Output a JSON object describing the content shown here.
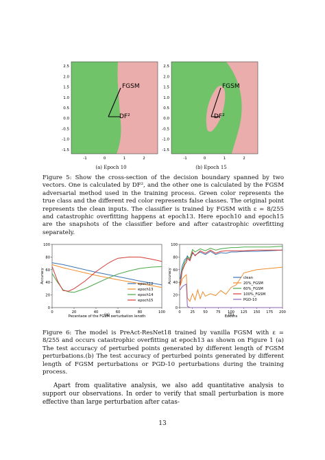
{
  "figure5": {
    "panels": [
      {
        "subcaption": "(a) Epoch 10",
        "xticks": [
          "-1",
          "0",
          "1",
          "2"
        ],
        "yticks": [
          "2.5",
          "2.0",
          "1.5",
          "1.0",
          "0.5",
          "0.0",
          "-0.5",
          "-1.0",
          "-1.5"
        ],
        "label_fgsm": "FGSM",
        "label_df": "DF²",
        "colors": {
          "true_class": "#71c36a",
          "false_class": "#eaadac"
        }
      },
      {
        "subcaption": "(b) Epoch 15",
        "xticks": [
          "-1",
          "0",
          "1",
          "2"
        ],
        "yticks": [
          "2.5",
          "2.0",
          "1.5",
          "1.0",
          "0.5",
          "0.0",
          "-0.5",
          "-1.0",
          "-1.5"
        ],
        "label_fgsm": "FGSM",
        "label_df": "DF²",
        "colors": {
          "true_class": "#71c36a",
          "false_class": "#eaadac"
        }
      }
    ],
    "caption": "Figure 5: Show the cross-section of the decision boundary spanned by two vectors. One is calculated by DF², and the other one is calculated by the FGSM adversarial method used in the training process. Green color represents the true class and the different red color represents false classes. The original point represents the clean inputs. The classifier is trained by FGSM with ε = 8/255 and catastrophic overfitting happens at epoch13. Here epoch10 and epoch15 are the snapshots of the classifier before and after catastrophic overfitting separately."
  },
  "figure6": {
    "caption": "Figure 6: The model is PreAct-ResNet18 trained by vanilla FGSM with ε = 8/255 and occurs catastrophic overfitting at epoch13 as shown on Figure 1 (a) The test accuracy of perturbed points generated by different length of FGSM perturbations.(b) The test accuracy of perturbed points generated by different length of FGSM perturbations or PGD-10 perturbations during the training process."
  },
  "chart_data": [
    {
      "type": "line",
      "subcaption": "(a)",
      "xlabel": "Pecentage of the FGSM perturbation length",
      "ylabel": "Accuracy",
      "xlim": [
        0,
        100
      ],
      "ylim": [
        0,
        100
      ],
      "xticks": [
        0,
        20,
        40,
        60,
        80,
        100
      ],
      "yticks": [
        0,
        20,
        40,
        60,
        80,
        100
      ],
      "legend_position": "lower-right",
      "series": [
        {
          "name": "epoch12",
          "color": "#3b73b3",
          "x": [
            0,
            10,
            20,
            40,
            60,
            80,
            100
          ],
          "values": [
            71,
            68,
            64,
            56,
            49,
            42,
            36
          ]
        },
        {
          "name": "epoch13",
          "color": "#f08c2c",
          "x": [
            0,
            10,
            20,
            40,
            60,
            80,
            100
          ],
          "values": [
            68,
            63,
            59,
            51,
            44,
            38,
            32
          ]
        },
        {
          "name": "epoch14",
          "color": "#49a845",
          "x": [
            0,
            5,
            10,
            15,
            20,
            30,
            40,
            50,
            60,
            70,
            80,
            90,
            100
          ],
          "values": [
            54,
            40,
            28,
            25,
            24,
            30,
            38,
            46,
            53,
            58,
            62,
            64,
            65
          ]
        },
        {
          "name": "epoch15",
          "color": "#d43a35",
          "x": [
            0,
            5,
            10,
            15,
            20,
            30,
            40,
            50,
            55,
            60,
            70,
            80,
            90,
            100
          ],
          "values": [
            65,
            42,
            27,
            26,
            30,
            42,
            57,
            69,
            74,
            78,
            80,
            80,
            77,
            73
          ]
        }
      ]
    },
    {
      "type": "line",
      "subcaption": "(b)",
      "xlabel": "Epochs",
      "ylabel": "Accuracy",
      "xlim": [
        0,
        200
      ],
      "ylim": [
        0,
        100
      ],
      "xticks": [
        0,
        25,
        50,
        75,
        100,
        125,
        150,
        175,
        200
      ],
      "yticks": [
        0,
        20,
        40,
        60,
        80,
        100
      ],
      "legend_position": "center-right",
      "series": [
        {
          "name": "clean",
          "color": "#3b73b3",
          "x": [
            1,
            5,
            10,
            13,
            15,
            20,
            25,
            30,
            40,
            50,
            60,
            70,
            80,
            90,
            100,
            110,
            125,
            150,
            175,
            200
          ],
          "values": [
            45,
            66,
            76,
            78,
            82,
            75,
            86,
            83,
            88,
            84,
            89,
            84,
            87,
            86,
            88,
            88,
            89,
            89,
            90,
            91
          ]
        },
        {
          "name": "20%_FGSM",
          "color": "#f08c2c",
          "x": [
            1,
            5,
            10,
            13,
            15,
            20,
            25,
            30,
            35,
            40,
            45,
            50,
            60,
            70,
            80,
            90,
            100,
            110,
            125,
            150,
            175,
            200
          ],
          "values": [
            34,
            45,
            50,
            52,
            15,
            10,
            22,
            12,
            28,
            14,
            25,
            18,
            22,
            19,
            27,
            21,
            32,
            36,
            55,
            60,
            62,
            64
          ]
        },
        {
          "name": "60%_FGSM",
          "color": "#49a845",
          "x": [
            1,
            5,
            10,
            13,
            15,
            20,
            25,
            30,
            40,
            50,
            60,
            70,
            80,
            90,
            100,
            110,
            125,
            150,
            175,
            200
          ],
          "values": [
            38,
            60,
            72,
            76,
            80,
            78,
            92,
            88,
            93,
            90,
            94,
            91,
            93,
            94,
            95,
            95,
            96,
            96,
            96,
            97
          ]
        },
        {
          "name": "100%_FGSM",
          "color": "#d43a35",
          "x": [
            1,
            5,
            10,
            13,
            15,
            20,
            25,
            30,
            40,
            50,
            60,
            70,
            80,
            90,
            100,
            110,
            125,
            150,
            175,
            200
          ],
          "values": [
            36,
            58,
            68,
            72,
            78,
            74,
            88,
            82,
            90,
            86,
            91,
            86,
            89,
            90,
            90,
            90,
            90,
            91,
            91,
            91
          ]
        },
        {
          "name": "PGD-10",
          "color": "#8a63b8",
          "x": [
            1,
            5,
            10,
            13,
            15,
            20,
            200
          ],
          "values": [
            28,
            33,
            36,
            37,
            2,
            0,
            0
          ]
        }
      ]
    }
  ],
  "body_text": "Apart from qualitative analysis, we also add quantitative analysis to support our observations. In order to verify that small perturbation is more effective than large perturbation after catas-",
  "page_number": "13"
}
